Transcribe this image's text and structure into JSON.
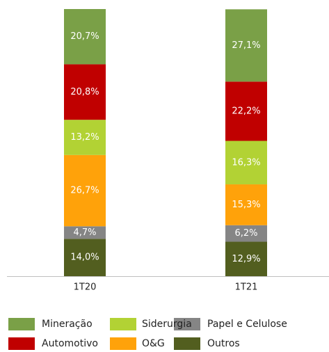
{
  "chart_data": {
    "type": "stacked_bar",
    "categories": [
      "1T20",
      "1T21"
    ],
    "series": [
      {
        "name": "Outros",
        "color": "#525e1f",
        "values": [
          14.0,
          12.9
        ],
        "value_labels": [
          "14,0%",
          "12,9%"
        ]
      },
      {
        "name": "Papel e Celulose",
        "color": "#858585",
        "values": [
          4.7,
          6.2
        ],
        "value_labels": [
          "4,7%",
          "6,2%"
        ]
      },
      {
        "name": "O&G",
        "color": "#ffa20a",
        "values": [
          26.7,
          15.3
        ],
        "value_labels": [
          "26,7%",
          "15,3%"
        ]
      },
      {
        "name": "Siderurgia",
        "color": "#b2d234",
        "values": [
          13.2,
          16.3
        ],
        "value_labels": [
          "13,2%",
          "16,3%"
        ]
      },
      {
        "name": "Automotivo",
        "color": "#c00000",
        "values": [
          20.8,
          22.2
        ],
        "value_labels": [
          "20,8%",
          "22,2%"
        ]
      },
      {
        "name": "Mineração",
        "color": "#7aa047",
        "values": [
          20.7,
          27.1
        ],
        "value_labels": [
          "20,7%",
          "27,1%"
        ]
      }
    ]
  }
}
